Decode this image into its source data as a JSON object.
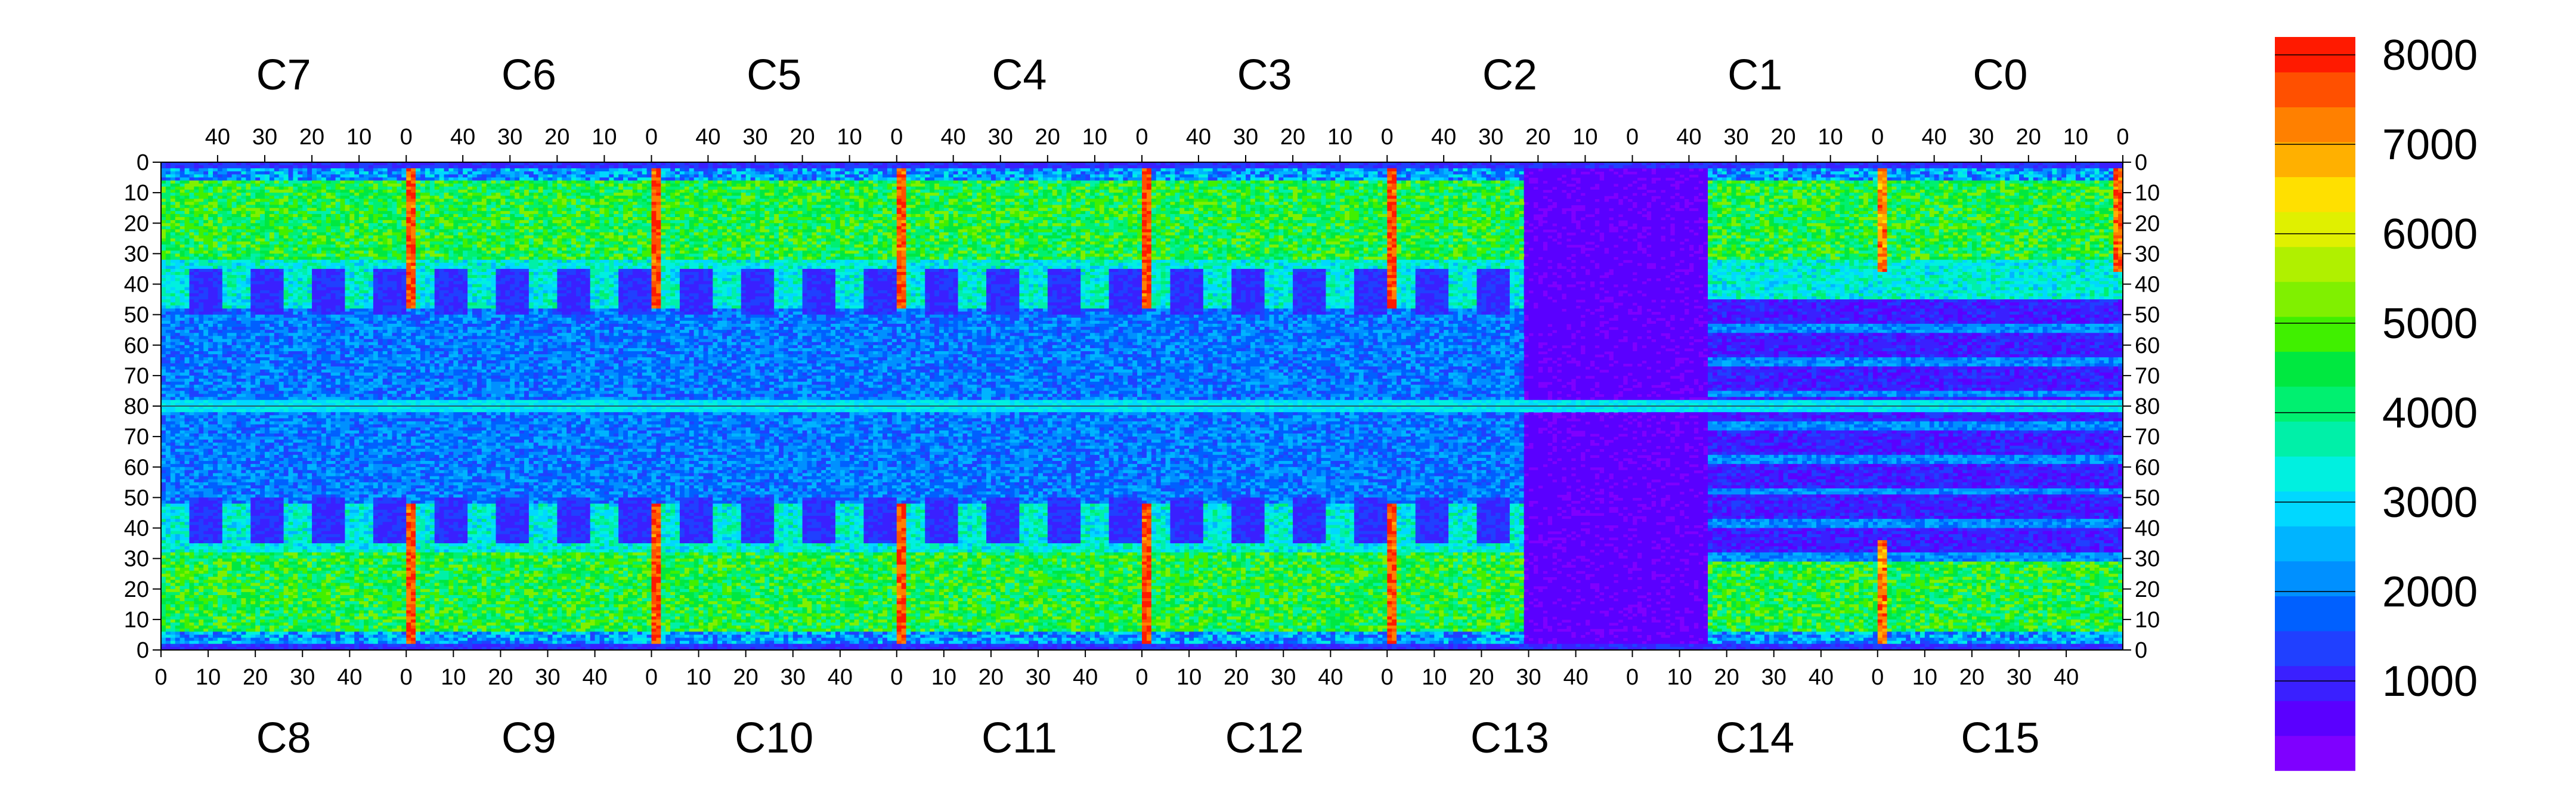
{
  "chart_data": {
    "type": "heatmap",
    "top_chip_labels": [
      "C7",
      "C6",
      "C5",
      "C4",
      "C3",
      "C2",
      "C1",
      "C0"
    ],
    "bottom_chip_labels": [
      "C8",
      "C9",
      "C10",
      "C11",
      "C12",
      "C13",
      "C14",
      "C15"
    ],
    "top_x_ticks": [
      "40",
      "30",
      "20",
      "10",
      "0"
    ],
    "bottom_x_ticks": [
      "0",
      "10",
      "20",
      "30",
      "40"
    ],
    "y_ticks": [
      "0",
      "10",
      "20",
      "30",
      "40",
      "50",
      "60",
      "70",
      "80",
      "70",
      "60",
      "50",
      "40",
      "30",
      "20",
      "10",
      "0"
    ],
    "y_range_per_half": [
      0,
      80
    ],
    "x_range_per_chip": [
      0,
      52
    ],
    "colorbar": {
      "ticks": [
        "8000",
        "7000",
        "6000",
        "5000",
        "4000",
        "3000",
        "2000",
        "1000"
      ],
      "range": [
        0,
        8200
      ],
      "colors": [
        "#7f00ff",
        "#5a00ff",
        "#3a20ff",
        "#2040ff",
        "#0060ff",
        "#0090ff",
        "#00b4ff",
        "#00d8ff",
        "#00f0e0",
        "#00f0a8",
        "#00f070",
        "#00e840",
        "#40f000",
        "#80f000",
        "#b0f000",
        "#e0f000",
        "#ffe000",
        "#ffb000",
        "#ff8000",
        "#ff5000",
        "#ff1a00"
      ]
    }
  }
}
